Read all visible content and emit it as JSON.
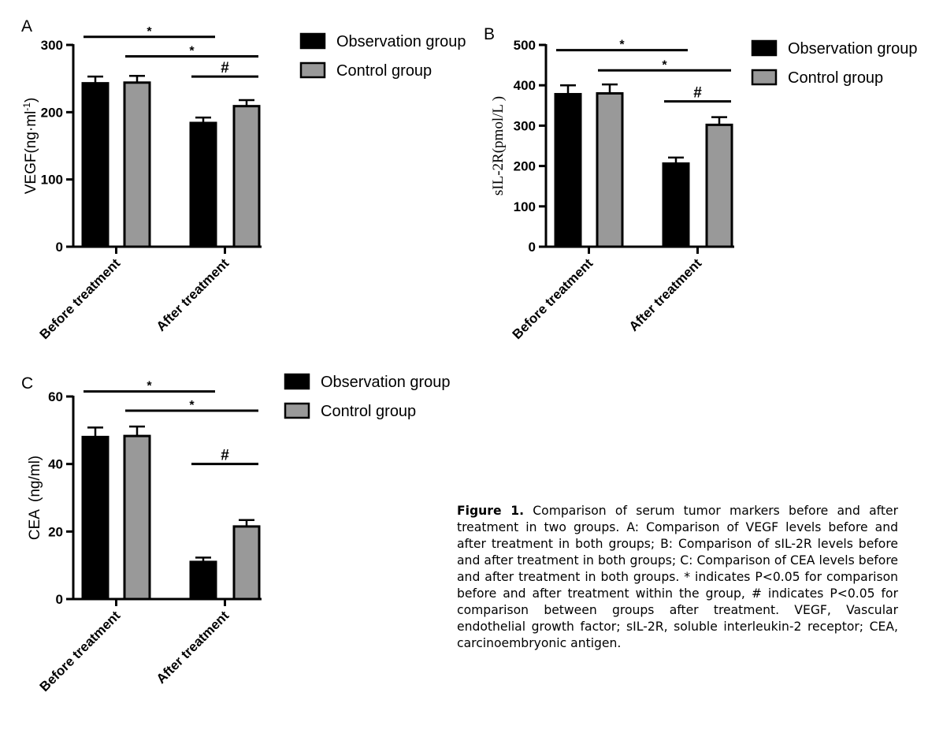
{
  "chart_data": [
    {
      "panel": "A",
      "type": "bar",
      "ylabel": "VEGF(ng·ml",
      "ylabel_sup": "-1",
      "ylabel_end": ")",
      "ylim": [
        0,
        300
      ],
      "yticks": [
        0,
        100,
        200,
        300
      ],
      "categories": [
        "Before treatment",
        "After treatment"
      ],
      "series": [
        {
          "name": "Observation group",
          "color": "#000000",
          "values": [
            243,
            184
          ],
          "errors": [
            10,
            8
          ]
        },
        {
          "name": "Control group",
          "color": "#999999",
          "values": [
            244,
            209
          ],
          "errors": [
            10,
            9
          ]
        }
      ],
      "annotations": [
        {
          "text": "*",
          "from": [
            0,
            0
          ],
          "to": [
            1,
            0
          ],
          "y": 312
        },
        {
          "text": "*",
          "from": [
            0,
            1
          ],
          "to": [
            1,
            1
          ],
          "y": 283
        },
        {
          "text": "#",
          "from": [
            1,
            0
          ],
          "to": [
            1,
            1
          ],
          "y": 253
        }
      ],
      "legend_position": "right"
    },
    {
      "panel": "B",
      "type": "bar",
      "ylabel": "sIL-2R(pmol/L )",
      "ylim": [
        0,
        500
      ],
      "yticks": [
        0,
        100,
        200,
        300,
        400,
        500
      ],
      "categories": [
        "Before treatment",
        "After treatment"
      ],
      "series": [
        {
          "name": "Observation group",
          "color": "#000000",
          "values": [
            378,
            206
          ],
          "errors": [
            22,
            15
          ]
        },
        {
          "name": "Control group",
          "color": "#999999",
          "values": [
            380,
            302
          ],
          "errors": [
            22,
            19
          ]
        }
      ],
      "annotations": [
        {
          "text": "*",
          "from": [
            0,
            0
          ],
          "to": [
            1,
            0
          ],
          "y": 487
        },
        {
          "text": "*",
          "from": [
            0,
            1
          ],
          "to": [
            1,
            1
          ],
          "y": 437
        },
        {
          "text": "#",
          "from": [
            1,
            0
          ],
          "to": [
            1,
            1
          ],
          "y": 360
        }
      ],
      "legend_position": "right"
    },
    {
      "panel": "C",
      "type": "bar",
      "ylabel": "CEA  (ng/ml)",
      "ylim": [
        0,
        60
      ],
      "yticks": [
        0,
        20,
        40,
        60
      ],
      "categories": [
        "Before treatment",
        "After treatment"
      ],
      "series": [
        {
          "name": "Observation group",
          "color": "#000000",
          "values": [
            48,
            11
          ],
          "errors": [
            2.8,
            1.3
          ]
        },
        {
          "name": "Control group",
          "color": "#999999",
          "values": [
            48.3,
            21.5
          ],
          "errors": [
            2.8,
            1.9
          ]
        }
      ],
      "annotations": [
        {
          "text": "*",
          "from": [
            0,
            0
          ],
          "to": [
            1,
            0
          ],
          "y": 61.5
        },
        {
          "text": "*",
          "from": [
            0,
            1
          ],
          "to": [
            1,
            1
          ],
          "y": 55.8
        },
        {
          "text": "#",
          "from": [
            1,
            0
          ],
          "to": [
            1,
            1
          ],
          "y": 40
        }
      ],
      "legend_position": "right"
    }
  ],
  "caption": {
    "label": "Figure 1.",
    "text": " Comparison of serum tumor markers before and after treatment in two groups. A: Comparison of VEGF levels before and after treatment in both groups; B: Comparison of sIL-2R levels before and after treatment in both groups; C: Comparison of CEA levels before and after treatment in both groups. * indicates P<0.05 for comparison before and after treatment within the group, # indicates P<0.05 for comparison between groups after treatment. VEGF, Vascular endothelial growth factor; sIL-2R, soluble interleukin-2 receptor; CEA, carcinoembryonic antigen."
  }
}
